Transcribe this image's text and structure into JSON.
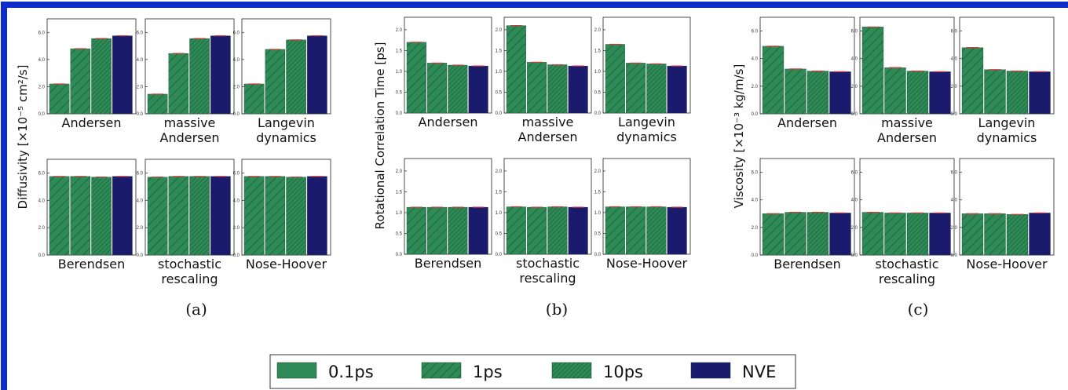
{
  "colors": {
    "frame": "#0c2ccc",
    "green": "#2e8b57",
    "navy": "#1b1b6e",
    "errorbar": "#d23c3c",
    "axis": "#222222"
  },
  "chart_data": [
    {
      "type": "bar",
      "panel_label": "(a)",
      "ylabel": "Diffusivity [×10⁻⁵ cm²/s]",
      "ylim": [
        0,
        7
      ],
      "yticks": [
        "0.0",
        "2.0",
        "4.0",
        "6.0"
      ],
      "series_names": [
        "0.1ps",
        "1ps",
        "10ps",
        "NVE"
      ],
      "subplots": [
        {
          "title": [
            "Andersen"
          ],
          "values": [
            2.2,
            4.8,
            5.55,
            5.75
          ]
        },
        {
          "title": [
            "massive",
            "Andersen"
          ],
          "values": [
            1.45,
            4.45,
            5.55,
            5.75
          ]
        },
        {
          "title": [
            "Langevin",
            "dynamics"
          ],
          "values": [
            2.2,
            4.75,
            5.45,
            5.75
          ]
        },
        {
          "title": [
            "Berendsen"
          ],
          "values": [
            5.75,
            5.75,
            5.7,
            5.75
          ]
        },
        {
          "title": [
            "stochastic",
            "rescaling"
          ],
          "values": [
            5.7,
            5.75,
            5.75,
            5.75
          ]
        },
        {
          "title": [
            "Nose-Hoover"
          ],
          "values": [
            5.75,
            5.75,
            5.7,
            5.75
          ]
        }
      ]
    },
    {
      "type": "bar",
      "panel_label": "(b)",
      "ylabel": "Rotational Correlation Time [ps]",
      "ylim": [
        0,
        2.3
      ],
      "yticks": [
        "0.0",
        "0.5",
        "1.0",
        "1.5",
        "2.0"
      ],
      "series_names": [
        "0.1ps",
        "1ps",
        "10ps",
        "NVE"
      ],
      "subplots": [
        {
          "title": [
            "Andersen"
          ],
          "values": [
            1.7,
            1.2,
            1.15,
            1.13
          ]
        },
        {
          "title": [
            "massive",
            "Andersen"
          ],
          "values": [
            2.1,
            1.22,
            1.16,
            1.13
          ]
        },
        {
          "title": [
            "Langevin",
            "dynamics"
          ],
          "values": [
            1.65,
            1.2,
            1.18,
            1.13
          ]
        },
        {
          "title": [
            "Berendsen"
          ],
          "values": [
            1.13,
            1.13,
            1.13,
            1.13
          ]
        },
        {
          "title": [
            "stochastic",
            "rescaling"
          ],
          "values": [
            1.14,
            1.13,
            1.14,
            1.13
          ]
        },
        {
          "title": [
            "Nose-Hoover"
          ],
          "values": [
            1.14,
            1.14,
            1.14,
            1.13
          ]
        }
      ]
    },
    {
      "type": "bar",
      "panel_label": "(c)",
      "ylabel": "Viscosity [×10⁻³ kg/m/s]",
      "ylim": [
        0,
        7
      ],
      "yticks": [
        "0.0",
        "2.0",
        "4.0",
        "6.0"
      ],
      "series_names": [
        "0.1ps",
        "1ps",
        "10ps",
        "NVE"
      ],
      "subplots": [
        {
          "title": [
            "Andersen"
          ],
          "values": [
            4.9,
            3.25,
            3.1,
            3.05
          ]
        },
        {
          "title": [
            "massive",
            "Andersen"
          ],
          "values": [
            6.3,
            3.35,
            3.1,
            3.05
          ]
        },
        {
          "title": [
            "Langevin",
            "dynamics"
          ],
          "values": [
            4.8,
            3.2,
            3.1,
            3.05
          ]
        },
        {
          "title": [
            "Berendsen"
          ],
          "values": [
            3.0,
            3.1,
            3.1,
            3.05
          ]
        },
        {
          "title": [
            "stochastic",
            "rescaling"
          ],
          "values": [
            3.1,
            3.05,
            3.05,
            3.05
          ]
        },
        {
          "title": [
            "Nose-Hoover"
          ],
          "values": [
            3.0,
            3.0,
            2.95,
            3.05
          ]
        }
      ]
    }
  ],
  "legend": {
    "entries": [
      {
        "label": "0.1ps",
        "style": "solid"
      },
      {
        "label": "1ps",
        "style": "hatch"
      },
      {
        "label": "10ps",
        "style": "hatch-dense"
      },
      {
        "label": "NVE",
        "style": "navy"
      }
    ]
  }
}
